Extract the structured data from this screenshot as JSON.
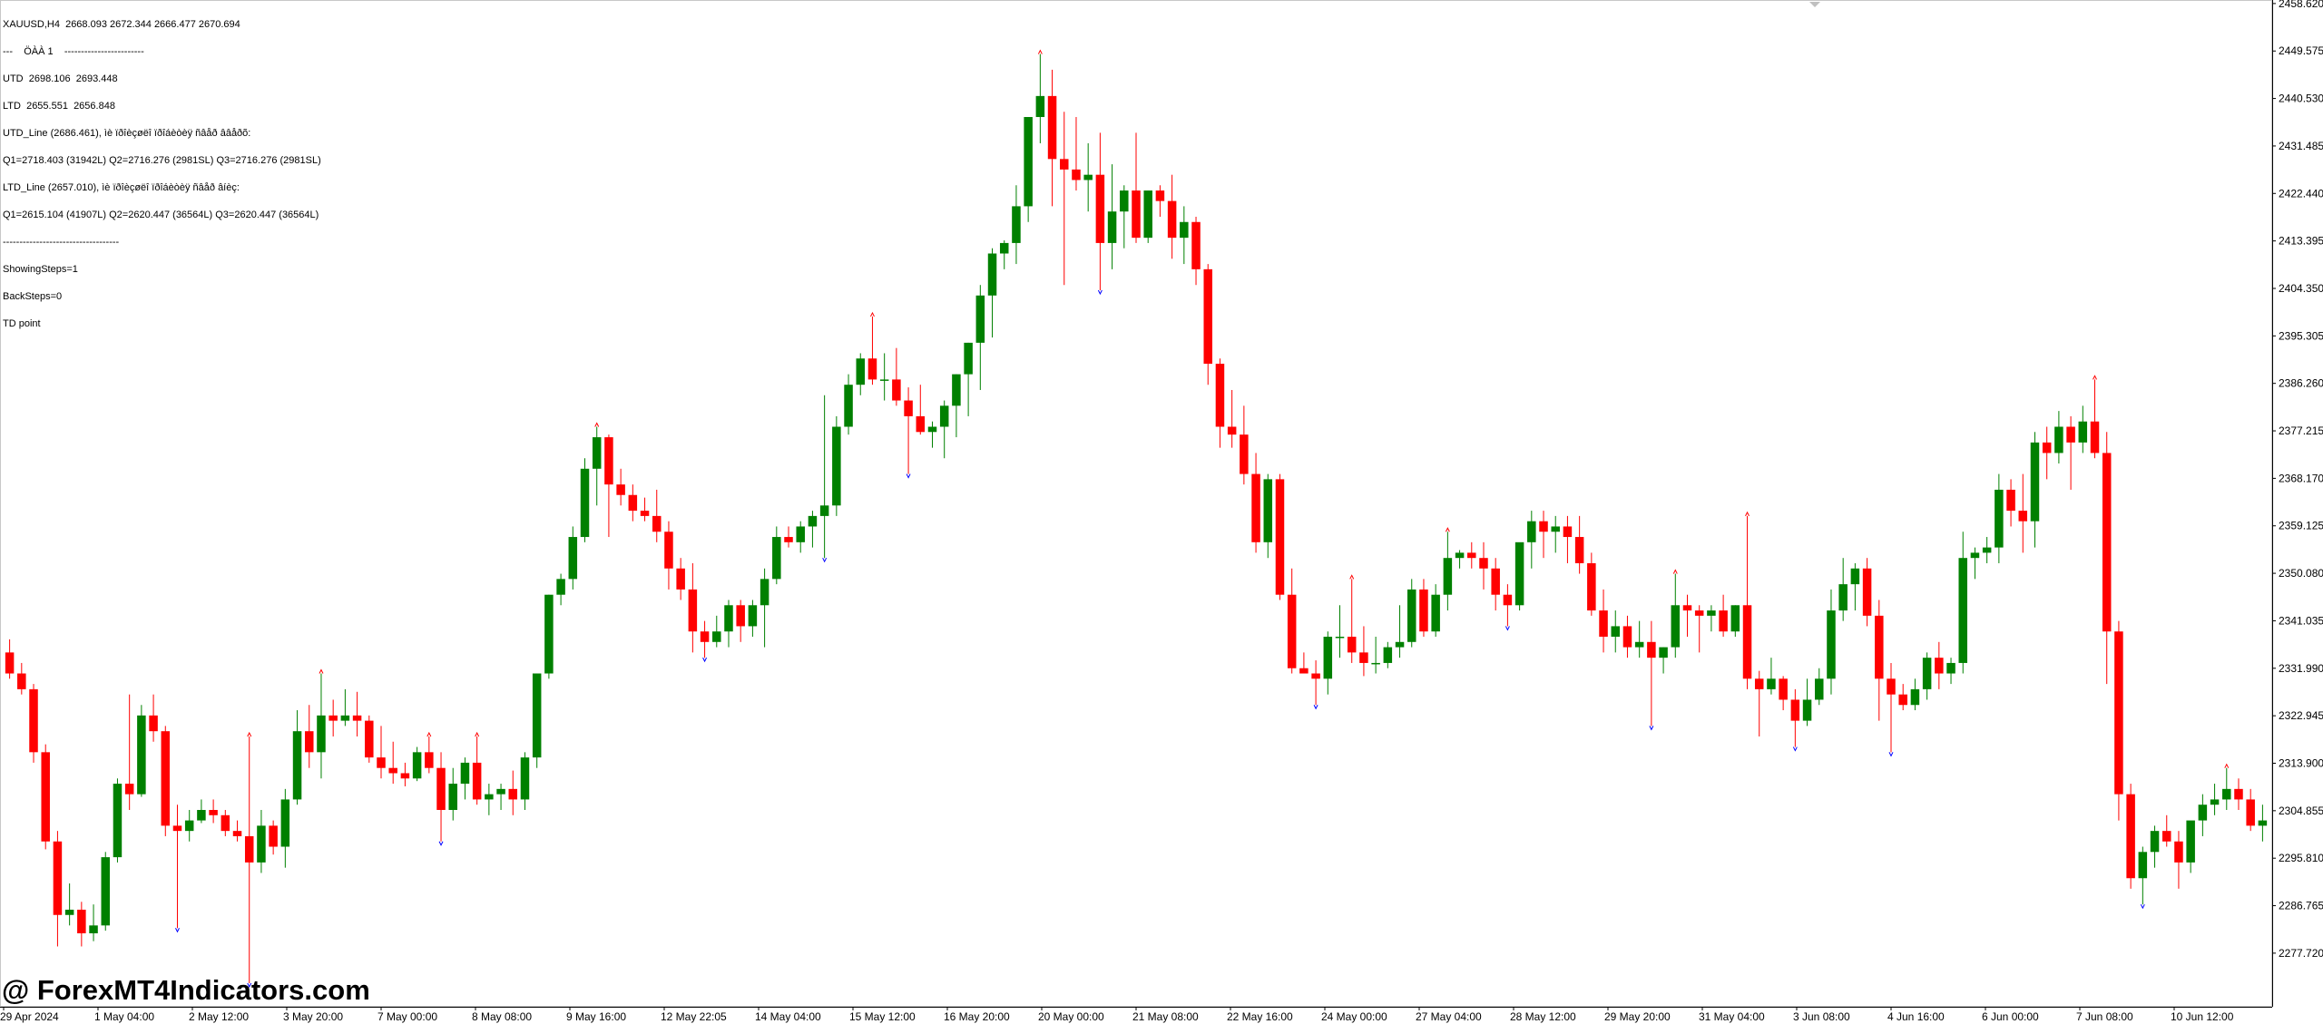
{
  "header": {
    "symbol_line": "XAUUSD,H4  2668.093 2672.344 2666.477 2670.694",
    "lines": [
      "---    ÖÀÀ 1    ------------------------",
      "UTD  2698.106  2693.448",
      "LTD  2655.551  2656.848",
      "UTD_Line (2686.461), ìè ïðîèçøëî ïðîáèòèÿ ñâåð ââåðõ:",
      "Q1=2718.403 (31942L) Q2=2716.276 (2981SL) Q3=2716.276 (2981SL)",
      "LTD_Line (2657.010), ìè ïðîèçøëî ïðîáèòèÿ ñâåð âíèç:",
      "Q1=2615.104 (41907L) Q2=2620.447 (36564L) Q3=2620.447 (36564L)",
      "-----------------------------------",
      "ShowingSteps=1",
      "BackSteps=0",
      "TD point"
    ]
  },
  "watermark": "@ ForexMT4Indicators.com",
  "colors": {
    "bull": "#008000",
    "bear": "#ff0000",
    "up_marker": "#ff0000",
    "down_marker": "#0000ff",
    "axis": "#000000"
  },
  "chart_data": {
    "type": "candlestick",
    "symbol": "XAUUSD",
    "timeframe": "H4",
    "ylim": [
      2272.0,
      2458.6
    ],
    "grid": false,
    "price_ticks": [
      "2458.620",
      "2449.575",
      "2440.530",
      "2431.485",
      "2422.440",
      "2413.395",
      "2404.350",
      "2395.305",
      "2386.260",
      "2377.215",
      "2368.170",
      "2359.125",
      "2350.080",
      "2341.035",
      "2331.990",
      "2322.945",
      "2313.900",
      "2304.855",
      "2295.810",
      "2286.765",
      "2277.720"
    ],
    "time_labels": [
      "29 Apr 2024",
      "1 May 04:00",
      "2 May 12:00",
      "3 May 20:00",
      "7 May 00:00",
      "8 May 08:00",
      "9 May 16:00",
      "12 May 22:05",
      "14 May 04:00",
      "15 May 12:00",
      "16 May 20:00",
      "20 May 00:00",
      "21 May 08:00",
      "22 May 16:00",
      "24 May 00:00",
      "27 May 04:00",
      "28 May 12:00",
      "29 May 20:00",
      "31 May 04:00",
      "3 Jun 08:00",
      "4 Jun 16:00",
      "6 Jun 00:00",
      "7 Jun 08:00",
      "10 Jun 12:00"
    ],
    "candles": [
      [
        2335.0,
        2337.5,
        2330.0,
        2331.0
      ],
      [
        2331.0,
        2333.0,
        2327.0,
        2328.0
      ],
      [
        2328.0,
        2329.0,
        2314.0,
        2316.0
      ],
      [
        2316.0,
        2317.5,
        2297.5,
        2299.0
      ],
      [
        2299.0,
        2301.0,
        2279.0,
        2285.0
      ],
      [
        2285.0,
        2291.0,
        2283.0,
        2286.0
      ],
      [
        2286.0,
        2287.5,
        2279.0,
        2281.5
      ],
      [
        2281.5,
        2287.0,
        2280.0,
        2283.0
      ],
      [
        2283.0,
        2297.0,
        2282.0,
        2296.0
      ],
      [
        2296.0,
        2311.0,
        2295.0,
        2310.0
      ],
      [
        2310.0,
        2327.0,
        2305.0,
        2308.0
      ],
      [
        2308.0,
        2325.0,
        2307.5,
        2323.0
      ],
      [
        2323.0,
        2327.0,
        2318.0,
        2320.0
      ],
      [
        2320.0,
        2321.0,
        2300.0,
        2302.0
      ],
      [
        2302.0,
        2306.0,
        2282.5,
        2301.0
      ],
      [
        2301.0,
        2305.0,
        2299.0,
        2303.0
      ],
      [
        2303.0,
        2307.0,
        2302.5,
        2305.0
      ],
      [
        2305.0,
        2307.0,
        2302.5,
        2304.0
      ],
      [
        2304.0,
        2305.0,
        2300.0,
        2301.0
      ],
      [
        2301.0,
        2303.0,
        2299.0,
        2300.0
      ],
      [
        2300.0,
        2319.0,
        2272.0,
        2295.0
      ],
      [
        2295.0,
        2305.0,
        2293.0,
        2302.0
      ],
      [
        2302.0,
        2303.0,
        2296.5,
        2298.0
      ],
      [
        2298.0,
        2309.0,
        2294.0,
        2307.0
      ],
      [
        2307.0,
        2324.0,
        2306.0,
        2320.0
      ],
      [
        2320.0,
        2325.0,
        2313.0,
        2316.0
      ],
      [
        2316.0,
        2331.0,
        2311.0,
        2323.0
      ],
      [
        2323.0,
        2326.0,
        2319.0,
        2322.0
      ],
      [
        2322.0,
        2328.0,
        2321.0,
        2323.0
      ],
      [
        2323.0,
        2327.5,
        2319.0,
        2322.0
      ],
      [
        2322.0,
        2323.0,
        2314.0,
        2315.0
      ],
      [
        2315.0,
        2321.0,
        2311.0,
        2313.0
      ],
      [
        2313.0,
        2318.0,
        2310.0,
        2312.0
      ],
      [
        2312.0,
        2314.0,
        2309.5,
        2311.0
      ],
      [
        2311.0,
        2317.0,
        2310.5,
        2316.0
      ],
      [
        2316.0,
        2319.0,
        2312.0,
        2313.0
      ],
      [
        2313.0,
        2316.0,
        2299.0,
        2305.0
      ],
      [
        2305.0,
        2313.0,
        2303.0,
        2310.0
      ],
      [
        2310.0,
        2315.0,
        2307.0,
        2314.0
      ],
      [
        2314.0,
        2319.0,
        2306.0,
        2307.0
      ],
      [
        2307.0,
        2310.0,
        2304.0,
        2308.0
      ],
      [
        2308.0,
        2310.0,
        2305.0,
        2309.0
      ],
      [
        2309.0,
        2312.5,
        2304.0,
        2307.0
      ],
      [
        2307.0,
        2316.0,
        2305.0,
        2315.0
      ],
      [
        2315.0,
        2331.0,
        2313.0,
        2331.0
      ],
      [
        2331.0,
        2346.0,
        2330.0,
        2346.0
      ],
      [
        2346.0,
        2350.0,
        2344.0,
        2349.0
      ],
      [
        2349.0,
        2359.0,
        2347.0,
        2357.0
      ],
      [
        2357.0,
        2372.0,
        2356.0,
        2370.0
      ],
      [
        2370.0,
        2378.0,
        2363.0,
        2376.0
      ],
      [
        2376.0,
        2376.5,
        2357.0,
        2367.0
      ],
      [
        2367.0,
        2370.0,
        2363.0,
        2365.0
      ],
      [
        2365.0,
        2367.0,
        2360.0,
        2362.0
      ],
      [
        2362.0,
        2364.5,
        2360.0,
        2361.0
      ],
      [
        2361.0,
        2366.0,
        2356.0,
        2358.0
      ],
      [
        2358.0,
        2360.0,
        2347.0,
        2351.0
      ],
      [
        2351.0,
        2353.0,
        2345.0,
        2347.0
      ],
      [
        2347.0,
        2352.0,
        2335.0,
        2339.0
      ],
      [
        2339.0,
        2341.0,
        2334.0,
        2337.0
      ],
      [
        2337.0,
        2342.0,
        2336.0,
        2339.0
      ],
      [
        2339.0,
        2345.0,
        2336.0,
        2344.0
      ],
      [
        2344.0,
        2345.0,
        2337.0,
        2340.0
      ],
      [
        2340.0,
        2345.0,
        2338.0,
        2344.0
      ],
      [
        2344.0,
        2351.0,
        2336.0,
        2349.0
      ],
      [
        2349.0,
        2359.0,
        2348.0,
        2357.0
      ],
      [
        2357.0,
        2359.0,
        2355.0,
        2356.0
      ],
      [
        2356.0,
        2360.0,
        2354.0,
        2359.0
      ],
      [
        2359.0,
        2362.0,
        2355.0,
        2361.0
      ],
      [
        2361.0,
        2384.0,
        2353.0,
        2363.0
      ],
      [
        2363.0,
        2380.0,
        2361.0,
        2378.0
      ],
      [
        2378.0,
        2388.0,
        2376.5,
        2386.0
      ],
      [
        2386.0,
        2392.0,
        2384.0,
        2391.0
      ],
      [
        2391.0,
        2399.0,
        2386.0,
        2387.0
      ],
      [
        2387.0,
        2392.0,
        2383.0,
        2387.0
      ],
      [
        2387.0,
        2393.0,
        2382.0,
        2383.0
      ],
      [
        2383.0,
        2385.5,
        2369.0,
        2380.0
      ],
      [
        2380.0,
        2386.0,
        2376.5,
        2377.0
      ],
      [
        2377.0,
        2379.0,
        2374.0,
        2378.0
      ],
      [
        2378.0,
        2383.0,
        2372.0,
        2382.0
      ],
      [
        2382.0,
        2388.0,
        2376.0,
        2388.0
      ],
      [
        2388.0,
        2394.0,
        2380.0,
        2394.0
      ],
      [
        2394.0,
        2405.0,
        2385.0,
        2403.0
      ],
      [
        2403.0,
        2412.0,
        2395.0,
        2411.0
      ],
      [
        2411.0,
        2413.5,
        2408.0,
        2413.0
      ],
      [
        2413.0,
        2424.0,
        2409.0,
        2420.0
      ],
      [
        2420.0,
        2437.0,
        2417.0,
        2437.0
      ],
      [
        2437.0,
        2449.0,
        2432.0,
        2441.0
      ],
      [
        2441.0,
        2446.0,
        2420.0,
        2429.0
      ],
      [
        2429.0,
        2438.0,
        2405.0,
        2427.0
      ],
      [
        2427.0,
        2437.0,
        2423.0,
        2425.0
      ],
      [
        2425.0,
        2432.0,
        2419.0,
        2426.0
      ],
      [
        2426.0,
        2434.0,
        2404.0,
        2413.0
      ],
      [
        2413.0,
        2428.0,
        2408.0,
        2419.0
      ],
      [
        2419.0,
        2424.0,
        2412.0,
        2423.0
      ],
      [
        2423.0,
        2434.0,
        2413.0,
        2414.0
      ],
      [
        2414.0,
        2423.0,
        2413.0,
        2423.0
      ],
      [
        2423.0,
        2424.0,
        2418.0,
        2421.0
      ],
      [
        2421.0,
        2426.0,
        2410.0,
        2414.0
      ],
      [
        2414.0,
        2420.0,
        2409.0,
        2417.0
      ],
      [
        2417.0,
        2418.0,
        2405.0,
        2408.0
      ],
      [
        2408.0,
        2409.0,
        2386.0,
        2390.0
      ],
      [
        2390.0,
        2391.0,
        2374.0,
        2378.0
      ],
      [
        2378.0,
        2385.0,
        2374.0,
        2376.5
      ],
      [
        2376.5,
        2382.0,
        2367.0,
        2369.0
      ],
      [
        2369.0,
        2373.0,
        2354.0,
        2356.0
      ],
      [
        2356.0,
        2369.0,
        2353.0,
        2368.0
      ],
      [
        2368.0,
        2369.0,
        2345.0,
        2346.0
      ],
      [
        2346.0,
        2351.0,
        2331.0,
        2332.0
      ],
      [
        2332.0,
        2335.0,
        2331.0,
        2331.0
      ],
      [
        2331.0,
        2333.5,
        2325.0,
        2330.0
      ],
      [
        2330.0,
        2339.0,
        2327.0,
        2338.0
      ],
      [
        2338.0,
        2344.0,
        2334.0,
        2338.0
      ],
      [
        2338.0,
        2349.0,
        2333.0,
        2335.0
      ],
      [
        2335.0,
        2340.0,
        2330.5,
        2333.0
      ],
      [
        2333.0,
        2338.0,
        2331.0,
        2333.0
      ],
      [
        2333.0,
        2337.0,
        2332.0,
        2336.0
      ],
      [
        2336.0,
        2344.0,
        2334.0,
        2337.0
      ],
      [
        2337.0,
        2349.0,
        2336.0,
        2347.0
      ],
      [
        2347.0,
        2349.0,
        2338.0,
        2339.0
      ],
      [
        2339.0,
        2348.0,
        2338.0,
        2346.0
      ],
      [
        2346.0,
        2358.0,
        2343.0,
        2353.0
      ],
      [
        2353.0,
        2354.5,
        2351.0,
        2354.0
      ],
      [
        2354.0,
        2356.0,
        2351.0,
        2353.0
      ],
      [
        2353.0,
        2356.0,
        2347.0,
        2351.0
      ],
      [
        2351.0,
        2353.0,
        2343.0,
        2346.0
      ],
      [
        2346.0,
        2348.0,
        2340.0,
        2344.0
      ],
      [
        2344.0,
        2355.0,
        2343.0,
        2356.0
      ],
      [
        2356.0,
        2362.0,
        2351.0,
        2360.0
      ],
      [
        2360.0,
        2362.0,
        2353.0,
        2358.0
      ],
      [
        2358.0,
        2361.0,
        2354.0,
        2359.0
      ],
      [
        2359.0,
        2361.0,
        2352.0,
        2357.0
      ],
      [
        2357.0,
        2361.0,
        2350.0,
        2352.0
      ],
      [
        2352.0,
        2354.0,
        2342.0,
        2343.0
      ],
      [
        2343.0,
        2347.0,
        2335.0,
        2338.0
      ],
      [
        2338.0,
        2343.0,
        2335.0,
        2340.0
      ],
      [
        2340.0,
        2342.0,
        2334.0,
        2336.0
      ],
      [
        2336.0,
        2341.0,
        2334.0,
        2337.0
      ],
      [
        2337.0,
        2341.0,
        2321.0,
        2334.0
      ],
      [
        2334.0,
        2336.0,
        2331.0,
        2336.0
      ],
      [
        2336.0,
        2350.0,
        2334.0,
        2344.0
      ],
      [
        2344.0,
        2346.0,
        2338.0,
        2343.0
      ],
      [
        2343.0,
        2344.0,
        2335.0,
        2342.0
      ],
      [
        2342.0,
        2344.0,
        2339.0,
        2343.0
      ],
      [
        2343.0,
        2346.0,
        2338.0,
        2339.0
      ],
      [
        2339.0,
        2344.0,
        2338.0,
        2344.0
      ],
      [
        2344.0,
        2361.0,
        2328.0,
        2330.0
      ],
      [
        2330.0,
        2331.5,
        2319.0,
        2328.0
      ],
      [
        2328.0,
        2334.0,
        2327.0,
        2330.0
      ],
      [
        2330.0,
        2330.5,
        2324.0,
        2326.0
      ],
      [
        2326.0,
        2328.0,
        2317.0,
        2322.0
      ],
      [
        2322.0,
        2330.0,
        2321.0,
        2326.0
      ],
      [
        2326.0,
        2332.0,
        2325.0,
        2330.0
      ],
      [
        2330.0,
        2347.0,
        2327.0,
        2343.0
      ],
      [
        2343.0,
        2353.0,
        2341.0,
        2348.0
      ],
      [
        2348.0,
        2352.0,
        2343.0,
        2351.0
      ],
      [
        2351.0,
        2353.0,
        2340.0,
        2342.0
      ],
      [
        2342.0,
        2345.0,
        2322.0,
        2330.0
      ],
      [
        2330.0,
        2333.0,
        2316.0,
        2327.0
      ],
      [
        2327.0,
        2329.0,
        2324.0,
        2325.0
      ],
      [
        2325.0,
        2330.0,
        2324.0,
        2328.0
      ],
      [
        2328.0,
        2335.0,
        2326.0,
        2334.0
      ],
      [
        2334.0,
        2337.0,
        2328.0,
        2331.0
      ],
      [
        2331.0,
        2334.0,
        2329.0,
        2333.0
      ],
      [
        2333.0,
        2358.0,
        2331.0,
        2353.0
      ],
      [
        2353.0,
        2355.0,
        2349.0,
        2354.0
      ],
      [
        2354.0,
        2357.0,
        2352.0,
        2355.0
      ],
      [
        2355.0,
        2369.0,
        2352.0,
        2366.0
      ],
      [
        2366.0,
        2368.0,
        2359.0,
        2362.0
      ],
      [
        2362.0,
        2369.0,
        2354.0,
        2360.0
      ],
      [
        2360.0,
        2377.0,
        2355.0,
        2375.0
      ],
      [
        2375.0,
        2378.0,
        2368.0,
        2373.0
      ],
      [
        2373.0,
        2381.0,
        2371.0,
        2378.0
      ],
      [
        2378.0,
        2380.0,
        2366.0,
        2375.0
      ],
      [
        2375.0,
        2382.0,
        2373.0,
        2379.0
      ],
      [
        2379.0,
        2387.0,
        2372.0,
        2373.0
      ],
      [
        2373.0,
        2377.0,
        2329.0,
        2339.0
      ],
      [
        2339.0,
        2341.0,
        2303.0,
        2308.0
      ],
      [
        2308.0,
        2310.0,
        2290.0,
        2292.0
      ],
      [
        2292.0,
        2298.0,
        2287.0,
        2297.0
      ],
      [
        2297.0,
        2302.0,
        2294.0,
        2301.0
      ],
      [
        2301.0,
        2304.0,
        2298.0,
        2299.0
      ],
      [
        2299.0,
        2301.0,
        2290.0,
        2295.0
      ],
      [
        2295.0,
        2302.0,
        2293.0,
        2303.0
      ],
      [
        2303.0,
        2308.0,
        2300.0,
        2306.0
      ],
      [
        2306.0,
        2310.0,
        2304.0,
        2307.0
      ],
      [
        2307.0,
        2313.0,
        2305.0,
        2309.0
      ],
      [
        2309.0,
        2311.0,
        2305.0,
        2307.0
      ],
      [
        2307.0,
        2309.0,
        2301.0,
        2302.0
      ],
      [
        2302.0,
        2306.0,
        2299.0,
        2303.0
      ]
    ]
  }
}
